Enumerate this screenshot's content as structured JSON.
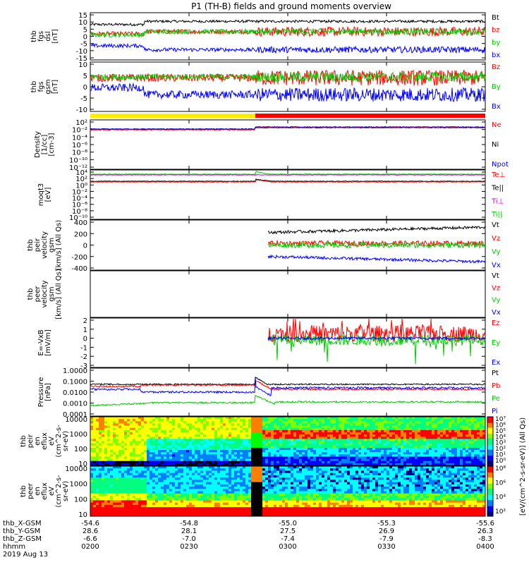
{
  "title": "P1 (TH-B) fields and ground moments overview",
  "panels": [
    {
      "id": "fgs-dsl",
      "ylabel": [
        "thb",
        "fgs",
        "dsl",
        "[nT]"
      ],
      "yticks": [
        "15",
        "10",
        "5",
        "0",
        "-5",
        "-10",
        "-15"
      ],
      "ylim": [
        -15,
        15
      ],
      "legend": [
        {
          "text": "Bt",
          "color": "#000000"
        },
        {
          "text": "bz",
          "color": "#ff0000"
        },
        {
          "text": "by",
          "color": "#00cc00"
        },
        {
          "text": "bx",
          "color": "#0000ff"
        }
      ]
    },
    {
      "id": "fgs-gsm",
      "ylabel": [
        "thb",
        "fgs",
        "gsm",
        "[nT]"
      ],
      "yticks": [
        "10",
        "5",
        "0",
        "-5",
        "-10"
      ],
      "ylim": [
        -15,
        10
      ],
      "legend": [
        {
          "text": "Bz",
          "color": "#ff0000"
        },
        {
          "text": "By",
          "color": "#00cc00"
        },
        {
          "text": "Bx",
          "color": "#0000ff"
        }
      ]
    },
    {
      "id": "density",
      "ylabel": [
        "Density",
        "[1/cc]",
        "[cm-3]"
      ],
      "yticks": [
        "10²",
        "10⁻²",
        "10⁻⁴",
        "10⁻⁶",
        "10⁻⁸",
        "10⁻¹⁰",
        "10⁻¹²"
      ],
      "log": true,
      "legend": [
        {
          "text": "Ne",
          "color": "#ff0000"
        },
        {
          "text": "Ni",
          "color": "#000000"
        },
        {
          "text": "Npot",
          "color": "#0000ff"
        }
      ]
    },
    {
      "id": "temp",
      "ylabel": [
        "moqt3",
        "[eV]"
      ],
      "yticks": [
        "10⁴",
        "10²",
        "10⁰",
        "10⁻²",
        "10⁻⁴",
        "10⁻⁶",
        "10⁻⁸",
        "10⁻¹⁰"
      ],
      "log": true,
      "legend": [
        {
          "text": "Te⊥",
          "color": "#ff0000"
        },
        {
          "text": "Te||",
          "color": "#000000"
        },
        {
          "text": "Ti⊥",
          "color": "#cc00cc"
        },
        {
          "text": "Ti||",
          "color": "#00cc00"
        }
      ]
    },
    {
      "id": "peir-velocity",
      "ylabel": [
        "thb",
        "peir",
        "velocity",
        "gsm",
        "[km/s] (All Qs)"
      ],
      "yticks": [
        "400",
        "200",
        "0",
        "-200",
        "-400"
      ],
      "ylim": [
        -400,
        400
      ],
      "legend": [
        {
          "text": "Vt",
          "color": "#000000"
        },
        {
          "text": "Vz",
          "color": "#ff0000"
        },
        {
          "text": "Vy",
          "color": "#00cc00"
        },
        {
          "text": "Vx",
          "color": "#0000ff"
        }
      ]
    },
    {
      "id": "peer-velocity",
      "ylabel": [
        "thb",
        "peer",
        "velocity",
        "gsm",
        "[km/s] (All Qs)"
      ],
      "yticks": [],
      "legend": [
        {
          "text": "Vt",
          "color": "#000000"
        },
        {
          "text": "Vz",
          "color": "#ff0000"
        },
        {
          "text": "Vy",
          "color": "#00cc00"
        },
        {
          "text": "Vx",
          "color": "#0000ff"
        }
      ]
    },
    {
      "id": "efield",
      "ylabel": [
        "E=-VxB",
        "[mV/m]"
      ],
      "yticks": [
        "2",
        "1",
        "0",
        "-1",
        "-2",
        "-3"
      ],
      "ylim": [
        -3.2,
        2.2
      ],
      "legend": [
        {
          "text": "Ez",
          "color": "#ff0000"
        },
        {
          "text": "Ey",
          "color": "#00cc00"
        },
        {
          "text": "Ex",
          "color": "#0000ff"
        }
      ]
    },
    {
      "id": "pressure",
      "ylabel": [
        "Pressure",
        "[nPa]"
      ],
      "yticks": [
        "1.0000",
        "0.1000",
        "0.0100",
        "0.0010",
        "0.0001"
      ],
      "log": true,
      "legend": [
        {
          "text": "Pt",
          "color": "#000000"
        },
        {
          "text": "Pb",
          "color": "#ff0000"
        },
        {
          "text": "Pe",
          "color": "#00cc00"
        },
        {
          "text": "Pi",
          "color": "#0000ff"
        }
      ]
    },
    {
      "id": "peir-spec",
      "ylabel": [
        "thb",
        "peir",
        "en",
        "eflux",
        "eV",
        "(cm^2-s-",
        "sr-eV)"
      ],
      "yticks": [
        "10000",
        "1000",
        "100",
        "10"
      ],
      "zlabel": "[eV/(cm^2-s-sr-eV)] (All Qs)",
      "zticks": [
        "10⁷",
        "10⁶",
        "10⁵",
        "10⁴",
        "10³",
        "10²",
        "10¹",
        "10⁰"
      ]
    },
    {
      "id": "peer-spec",
      "ylabel": [
        "thb",
        "peer",
        "en",
        "eflux",
        "eV",
        "(cm^2-s-",
        "sr-eV)"
      ],
      "yticks": [
        "10000",
        "1000",
        "100",
        "10"
      ],
      "zlabel": "[eV/(cm^2-s-sr-eV)]",
      "zticks": [
        "10⁸",
        "10⁶",
        "10⁴",
        "10²"
      ]
    }
  ],
  "chart_data": {
    "type": "line",
    "title": "P1 (TH-B) fields and ground moments overview",
    "x": [
      "0200",
      "0230",
      "0300",
      "0330",
      "0400"
    ],
    "xlim": [
      "0200",
      "0400"
    ],
    "mode_bar": [
      {
        "from": "0200",
        "to": "0300",
        "color": "#ffee00"
      },
      {
        "from": "0300",
        "to": "0400",
        "color": "#ff0000"
      }
    ],
    "series_fgs_dsl": [
      {
        "name": "Bt",
        "values": [
          8.5,
          9.5,
          7.0,
          9.5,
          10.5
        ]
      },
      {
        "name": "bz",
        "values": [
          1.5,
          3.0,
          0.5,
          3.0,
          2.0
        ]
      },
      {
        "name": "by",
        "values": [
          1.5,
          3.5,
          1.0,
          2.5,
          3.0
        ]
      },
      {
        "name": "bx",
        "values": [
          -6.0,
          -8.5,
          -4.0,
          -8.0,
          -9.5
        ]
      }
    ],
    "series_fgs_gsm": [
      {
        "name": "Bz",
        "values": [
          1.5,
          3.5,
          1.0,
          1.5,
          1.0
        ]
      },
      {
        "name": "By",
        "values": [
          2.0,
          3.0,
          0.5,
          2.5,
          2.5
        ]
      },
      {
        "name": "Bx",
        "values": [
          -3.0,
          -7.0,
          -4.0,
          -7.0,
          -9.5
        ]
      }
    ],
    "series_peir_velocity": [
      {
        "name": "Vt",
        "values": [
          null,
          null,
          200,
          300,
          280
        ]
      },
      {
        "name": "Vz",
        "values": [
          null,
          null,
          30,
          50,
          40
        ]
      },
      {
        "name": "Vy",
        "values": [
          null,
          null,
          0,
          -20,
          10
        ]
      },
      {
        "name": "Vx",
        "values": [
          null,
          null,
          -200,
          -300,
          -260
        ]
      }
    ],
    "series_efield": [
      {
        "name": "Ez",
        "values": [
          null,
          null,
          0.5,
          0.8,
          0.6
        ]
      },
      {
        "name": "Ey",
        "values": [
          null,
          null,
          0.0,
          -1.0,
          -0.5
        ]
      },
      {
        "name": "Ex",
        "values": [
          null,
          null,
          0.0,
          -0.1,
          0.0
        ]
      }
    ],
    "series_pressure": [
      {
        "name": "Pt",
        "values": [
          0.07,
          0.08,
          0.2,
          0.1,
          0.1
        ]
      },
      {
        "name": "Pb",
        "values": [
          0.04,
          0.06,
          0.15,
          0.06,
          0.06
        ]
      },
      {
        "name": "Pe",
        "values": [
          0.002,
          0.003,
          0.005,
          0.004,
          0.004
        ]
      },
      {
        "name": "Pi",
        "values": [
          0.04,
          0.05,
          0.1,
          0.07,
          0.07
        ]
      }
    ]
  },
  "xaxis": {
    "rows": [
      {
        "label": "thb_X-GSM",
        "values": [
          "-54.6",
          "-54.8",
          "-55.0",
          "-55.3",
          "-55.6"
        ]
      },
      {
        "label": "thb_Y-GSM",
        "values": [
          "28.6",
          "28.1",
          "27.5",
          "26.9",
          "26.3"
        ]
      },
      {
        "label": "thb_Z-GSM",
        "values": [
          "-6.6",
          "-7.0",
          "-7.4",
          "-7.9",
          "-8.3"
        ]
      },
      {
        "label": "hhmm",
        "values": [
          "0200",
          "0230",
          "0300",
          "0330",
          "0400"
        ]
      }
    ],
    "date": "2019 Aug 13"
  }
}
